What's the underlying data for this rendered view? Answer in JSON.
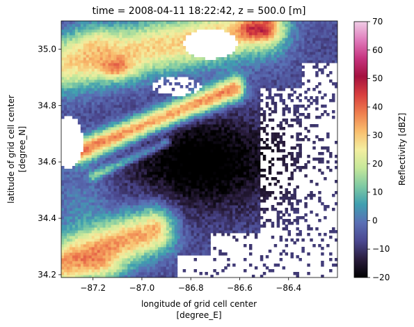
{
  "chart_data": {
    "type": "heatmap",
    "title": "time = 2008-04-11 18:22:42, z = 500.0 [m]",
    "xlabel_line1": "longitude of grid cell center",
    "xlabel_line2": "[degree_E]",
    "ylabel_line1": "latitude of grid cell center",
    "ylabel_line2": "[degree_N]",
    "xlim": [
      -87.33,
      -86.2
    ],
    "ylim": [
      34.19,
      35.1
    ],
    "xticks": [
      -87.2,
      -87.0,
      -86.8,
      -86.6,
      -86.4
    ],
    "xtick_labels": [
      "−87.2",
      "−87.0",
      "−86.8",
      "−86.6",
      "−86.4"
    ],
    "yticks": [
      34.2,
      34.4,
      34.6,
      34.8,
      35.0
    ],
    "ytick_labels": [
      "34.2",
      "34.4",
      "34.6",
      "34.8",
      "35.0"
    ],
    "colorbar": {
      "label": "Reflectivity [dBZ]",
      "min": -20,
      "max": 70,
      "ticks": [
        -20,
        -10,
        0,
        10,
        20,
        30,
        40,
        50,
        60,
        70
      ],
      "tick_labels": [
        "−20",
        "−10",
        "0",
        "10",
        "20",
        "30",
        "40",
        "50",
        "60",
        "70"
      ],
      "colormap": "Spectral_r-like",
      "colors": [
        "#000000",
        "#2a1d3d",
        "#4b4890",
        "#5a6fb5",
        "#3f9fb0",
        "#7fcaa3",
        "#c6e89a",
        "#f3eea0",
        "#f9be6e",
        "#ee7e4e",
        "#d83f3f",
        "#a4113f",
        "#c6347f",
        "#e07cbc",
        "#f0cde6"
      ]
    },
    "grid": false,
    "description_features": {
      "northern_band": "moderate-to-high reflectivity 10–45 dBZ across top-left, peaks near -87.0 to -86.8, 34.9",
      "central_band": "band 20–50 dBZ oriented SW–NE from -87.2,34.65 to -86.6,34.85",
      "central_minimum": "large area of −15 to −5 dBZ near -86.75, 34.6",
      "southern_band": "25–45 dBZ near bottom-left, -87.3 to -86.9, 34.2–34.35"
    }
  }
}
